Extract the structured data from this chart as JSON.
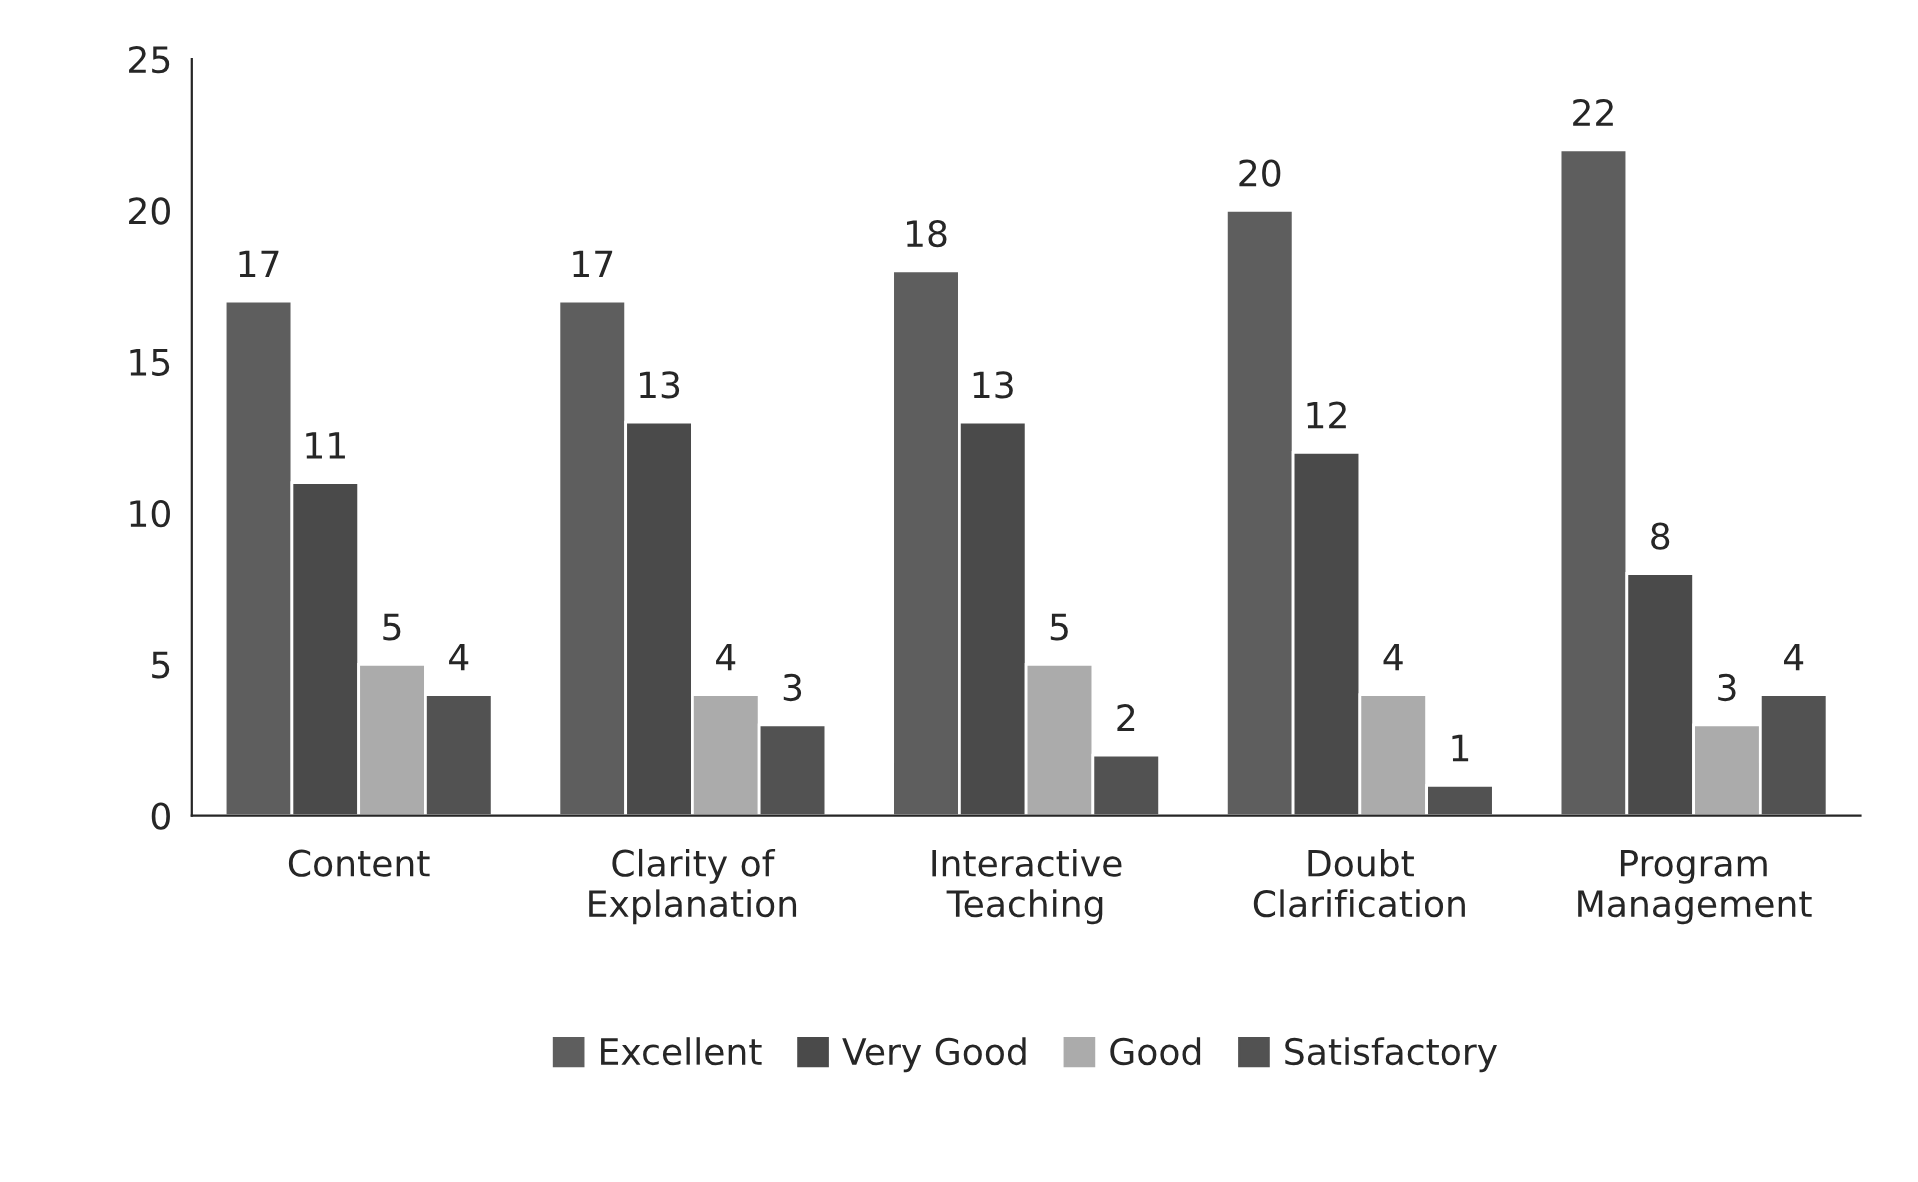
{
  "chart_data": {
    "type": "bar",
    "categories": [
      "Content",
      "Clarity of\nExplanation",
      "Interactive\nTeaching",
      "Doubt\nClarification",
      "Program\nManagement"
    ],
    "series": [
      {
        "name": "Excellent",
        "color": "#5e5e5e",
        "values": [
          17,
          17,
          18,
          20,
          22
        ]
      },
      {
        "name": "Very Good",
        "color": "#4a4a4a",
        "values": [
          11,
          13,
          13,
          12,
          8
        ]
      },
      {
        "name": "Good",
        "color": "#ababab",
        "values": [
          5,
          4,
          5,
          4,
          3
        ]
      },
      {
        "name": "Satisfactory",
        "color": "#525252",
        "values": [
          4,
          3,
          2,
          1,
          4
        ]
      }
    ],
    "ylim": [
      0,
      25
    ],
    "yticks": [
      0,
      5,
      10,
      15,
      20,
      25
    ],
    "data_labels": true,
    "grid": false,
    "legend": "bottom"
  }
}
